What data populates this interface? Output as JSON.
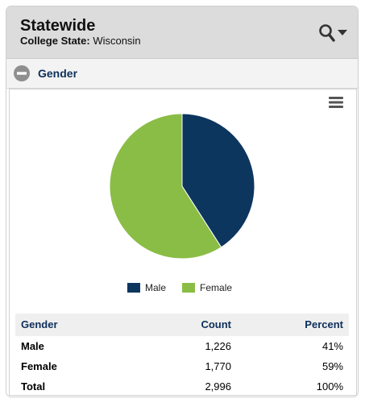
{
  "header": {
    "title": "Statewide",
    "subtitle_label": "College State:",
    "subtitle_value": "Wisconsin"
  },
  "section": {
    "title": "Gender"
  },
  "icons": {
    "search": "magnifier-icon",
    "dropdown": "caret-down-icon",
    "collapse": "minus-circle-icon",
    "menu": "hamburger-menu-icon"
  },
  "colors": {
    "male": "#0d365f",
    "female": "#8abd45",
    "header_text": "#0d2f5a"
  },
  "chart_data": {
    "type": "pie",
    "categories": [
      "Male",
      "Female"
    ],
    "values": [
      1226,
      1770
    ],
    "legend_position": "bottom-center"
  },
  "table": {
    "headers": [
      "Gender",
      "Count",
      "Percent"
    ],
    "rows": [
      {
        "label": "Male",
        "count": "1,226",
        "percent": "41%"
      },
      {
        "label": "Female",
        "count": "1,770",
        "percent": "59%"
      },
      {
        "label": "Total",
        "count": "2,996",
        "percent": "100%"
      }
    ]
  }
}
